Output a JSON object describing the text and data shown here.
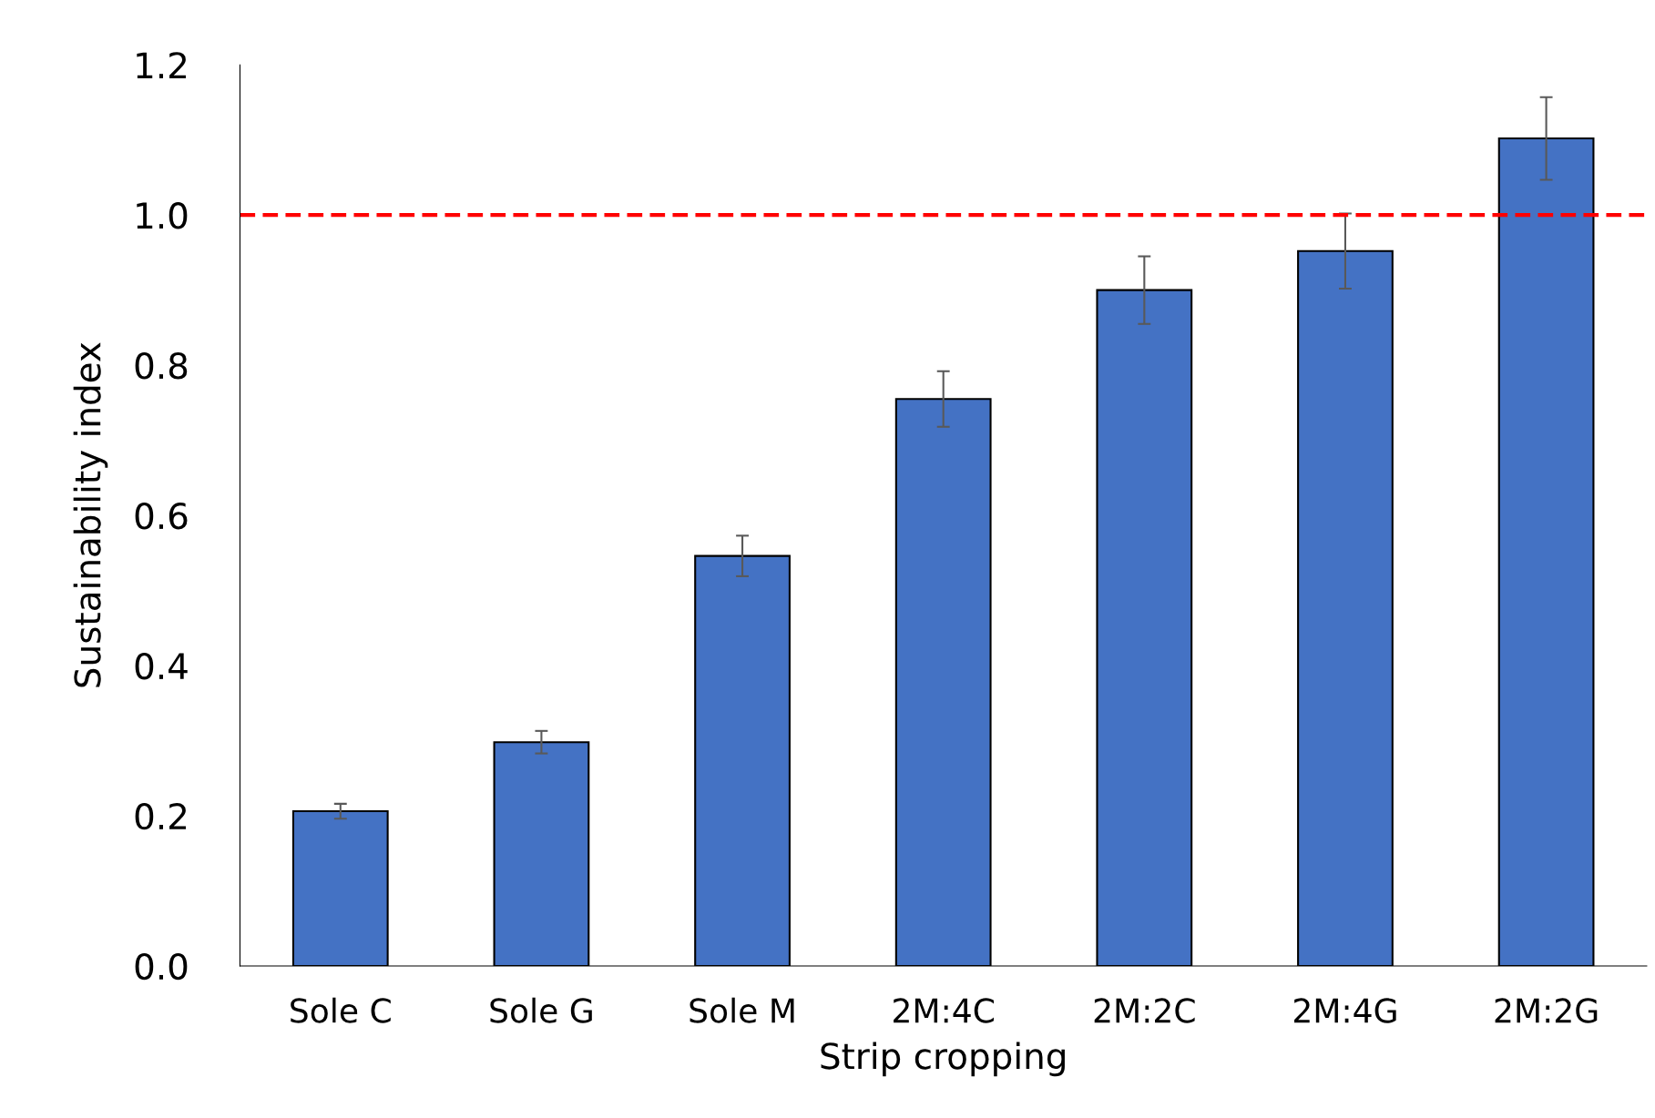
{
  "chart_data": {
    "type": "bar",
    "xlabel": "Strip cropping",
    "ylabel": "Sustainability index",
    "categories": [
      "Sole C",
      "Sole G",
      "Sole M",
      "2M:4C",
      "2M:2C",
      "2M:4G",
      "2M:2G"
    ],
    "values": [
      0.206,
      0.298,
      0.546,
      0.755,
      0.9,
      0.952,
      1.102
    ],
    "errors": [
      0.01,
      0.015,
      0.027,
      0.037,
      0.045,
      0.05,
      0.055
    ],
    "color": "#4472c4",
    "ylim": [
      0,
      1.2
    ],
    "yticks": [
      {
        "value": 0,
        "label": "0.0"
      },
      0.2,
      0.4,
      0.6,
      0.8,
      {
        "value": 1,
        "label": "1.0"
      },
      1.2
    ],
    "ref_lines": [
      {
        "axis": "y",
        "value": 1.0,
        "label": null,
        "color": "#ff0000",
        "line_style": "dashed"
      }
    ],
    "grid": false,
    "legend": false
  }
}
